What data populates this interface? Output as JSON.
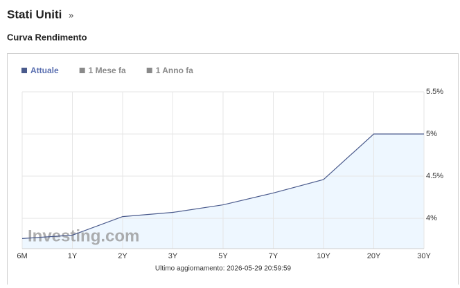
{
  "header": {
    "title": "Stati Uniti",
    "title_link": "»",
    "subtitle": "Curva Rendimento"
  },
  "chart_data": {
    "type": "line",
    "categories": [
      "6M",
      "1Y",
      "2Y",
      "3Y",
      "5Y",
      "7Y",
      "10Y",
      "20Y",
      "30Y"
    ],
    "series": [
      {
        "name": "Attuale",
        "color": "#4a5a8c",
        "values": [
          3.76,
          3.8,
          4.02,
          4.07,
          4.16,
          4.3,
          4.46,
          5.0,
          5.0
        ]
      },
      {
        "name": "1 Mese fa",
        "color": "#8a8a8a",
        "values": [
          null,
          null,
          null,
          null,
          null,
          null,
          null,
          null,
          null
        ]
      },
      {
        "name": "1 Anno fa",
        "color": "#8a8a8a",
        "values": [
          null,
          null,
          null,
          null,
          null,
          null,
          null,
          null,
          null
        ]
      }
    ],
    "ylim": [
      3.64,
      5.5
    ],
    "yticks": [
      {
        "value": 4,
        "label": "4%"
      },
      {
        "value": 4.5,
        "label": "4.5%"
      },
      {
        "value": 5,
        "label": "5%"
      },
      {
        "value": 5.5,
        "label": "5.5%"
      }
    ],
    "grid": true,
    "area_fill": "#eef7ff",
    "watermark": "Investing.com",
    "footer": "Ultimo aggiornamento: 2026-05-29 20:59:59"
  }
}
